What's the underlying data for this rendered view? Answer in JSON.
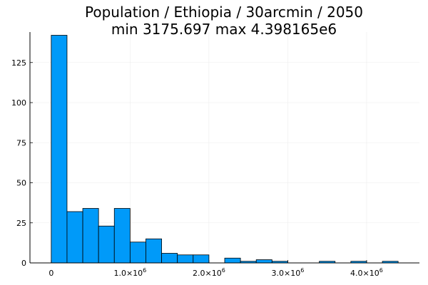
{
  "chart_data": {
    "type": "bar",
    "title": "Population / Ethiopia / 30arcmin / 2050",
    "subtitle": "min 3175.697  max 4.398165e6",
    "bin_width": 200000,
    "bins": [
      {
        "start": 0,
        "end": 200000,
        "count": 142
      },
      {
        "start": 200000,
        "end": 400000,
        "count": 32
      },
      {
        "start": 400000,
        "end": 600000,
        "count": 34
      },
      {
        "start": 600000,
        "end": 800000,
        "count": 23
      },
      {
        "start": 800000,
        "end": 1000000,
        "count": 34
      },
      {
        "start": 1000000,
        "end": 1200000,
        "count": 13
      },
      {
        "start": 1200000,
        "end": 1400000,
        "count": 15
      },
      {
        "start": 1400000,
        "end": 1600000,
        "count": 6
      },
      {
        "start": 1600000,
        "end": 1800000,
        "count": 5
      },
      {
        "start": 1800000,
        "end": 2000000,
        "count": 5
      },
      {
        "start": 2000000,
        "end": 2200000,
        "count": 0
      },
      {
        "start": 2200000,
        "end": 2400000,
        "count": 3
      },
      {
        "start": 2400000,
        "end": 2600000,
        "count": 1
      },
      {
        "start": 2600000,
        "end": 2800000,
        "count": 2
      },
      {
        "start": 2800000,
        "end": 3000000,
        "count": 1
      },
      {
        "start": 3000000,
        "end": 3200000,
        "count": 0
      },
      {
        "start": 3200000,
        "end": 3400000,
        "count": 0
      },
      {
        "start": 3400000,
        "end": 3600000,
        "count": 1
      },
      {
        "start": 3600000,
        "end": 3800000,
        "count": 0
      },
      {
        "start": 3800000,
        "end": 4000000,
        "count": 1
      },
      {
        "start": 4000000,
        "end": 4200000,
        "count": 0
      },
      {
        "start": 4200000,
        "end": 4400000,
        "count": 1
      }
    ],
    "xlim": [
      -270000,
      4670000
    ],
    "ylim": [
      0,
      144
    ],
    "x_ticks": [
      {
        "value": 0,
        "base": "0",
        "exp": ""
      },
      {
        "value": 1000000,
        "base": "1.0×10",
        "exp": "6"
      },
      {
        "value": 2000000,
        "base": "2.0×10",
        "exp": "6"
      },
      {
        "value": 3000000,
        "base": "3.0×10",
        "exp": "6"
      },
      {
        "value": 4000000,
        "base": "4.0×10",
        "exp": "6"
      }
    ],
    "y_ticks": [
      {
        "value": 0,
        "label": "0"
      },
      {
        "value": 25,
        "label": "25"
      },
      {
        "value": 50,
        "label": "50"
      },
      {
        "value": 75,
        "label": "75"
      },
      {
        "value": 100,
        "label": "100"
      },
      {
        "value": 125,
        "label": "125"
      }
    ],
    "grid": true,
    "legend": "none",
    "colors": {
      "bar_fill": "#009af9",
      "bar_stroke": "#000000",
      "grid": "#ececec",
      "axis": "#000000"
    }
  }
}
